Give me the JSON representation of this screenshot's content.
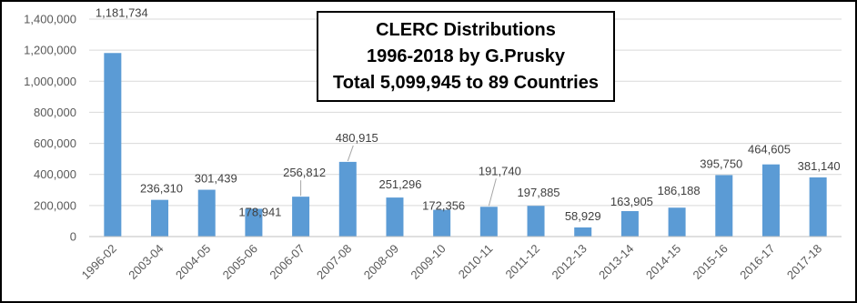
{
  "chart_data": {
    "type": "bar",
    "title_lines": [
      "CLERC Distributions",
      "1996-2018 by G.Prusky",
      "Total 5,099,945 to 89 Countries"
    ],
    "categories": [
      "1996-02",
      "2003-04",
      "2004-05",
      "2005-06",
      "2006-07",
      "2007-08",
      "2008-09",
      "2009-10",
      "2010-11",
      "2011-12",
      "2012-13",
      "2013-14",
      "2014-15",
      "2015-16",
      "2016-17",
      "2017-18"
    ],
    "values": [
      1181734,
      236310,
      301439,
      178941,
      256812,
      480915,
      251296,
      172356,
      191740,
      197885,
      58929,
      163905,
      186188,
      395750,
      464605,
      381140
    ],
    "data_labels": [
      "1,181,734",
      "236,310",
      "301,439",
      "178,941",
      "256,812",
      "480,915",
      "251,296",
      "172,356",
      "191,740",
      "197,885",
      "58,929",
      "163,905",
      "186,188",
      "395,750",
      "464,605",
      "381,140"
    ],
    "ylim": [
      0,
      1400000
    ],
    "y_ticks": [
      0,
      200000,
      400000,
      600000,
      800000,
      1000000,
      1200000,
      1400000
    ],
    "y_tick_labels": [
      "0",
      "200,000",
      "400,000",
      "600,000",
      "800,000",
      "1,000,000",
      "1,200,000",
      "1,400,000"
    ],
    "grid": true,
    "legend": "none",
    "bar_color": "#5b9bd5",
    "xlabel": "",
    "ylabel": ""
  }
}
